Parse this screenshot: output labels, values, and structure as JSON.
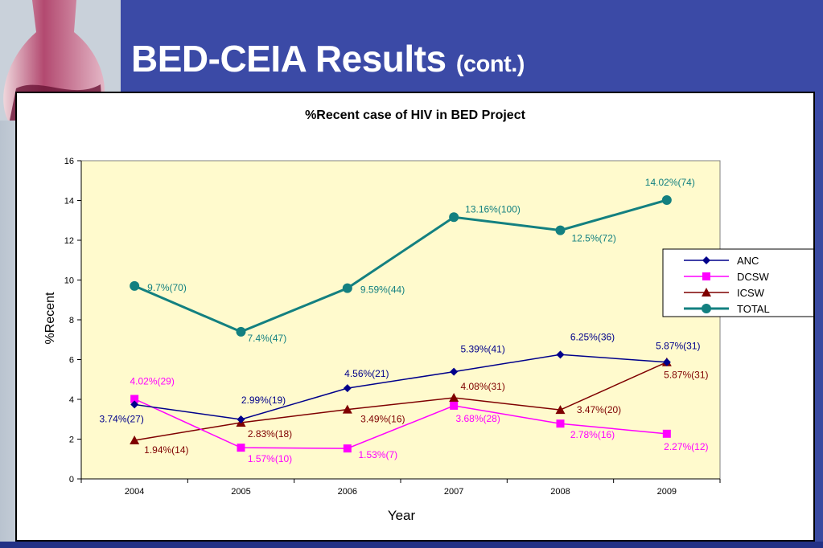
{
  "slide": {
    "title_main": "BED-CEIA Results",
    "title_sub": "(cont.)"
  },
  "colors": {
    "ANC": "#00008b",
    "DCSW": "#ff00ff",
    "ICSW": "#7f0000",
    "TOTAL": "#138080",
    "plot_bg": "#fffacd"
  },
  "chart_data": {
    "type": "line",
    "title": "%Recent case of HIV in BED Project",
    "xlabel": "Year",
    "ylabel": "%Recent",
    "categories": [
      "2004",
      "2005",
      "2006",
      "2007",
      "2008",
      "2009"
    ],
    "ylim": [
      0,
      16
    ],
    "yticks": [
      "0",
      "2",
      "4",
      "6",
      "8",
      "10",
      "12",
      "14",
      "16"
    ],
    "grid": false,
    "legend_position": "right",
    "series": [
      {
        "name": "ANC",
        "marker": "diamond",
        "values": [
          3.74,
          2.99,
          4.56,
          5.39,
          6.25,
          5.87
        ],
        "labels": [
          "3.74%(27)",
          "2.99%(19)",
          "4.56%(21)",
          "5.39%(41)",
          "6.25%(36)",
          "5.87%(31)"
        ]
      },
      {
        "name": "DCSW",
        "marker": "square",
        "values": [
          4.02,
          1.57,
          1.53,
          3.68,
          2.78,
          2.27
        ],
        "labels": [
          "4.02%(29)",
          "1.57%(10)",
          "1.53%(7)",
          "3.68%(28)",
          "2.78%(16)",
          "2.27%(12)"
        ]
      },
      {
        "name": "ICSW",
        "marker": "triangle",
        "values": [
          1.94,
          2.83,
          3.49,
          4.08,
          3.47,
          5.87
        ],
        "labels": [
          "1.94%(14)",
          "2.83%(18)",
          "3.49%(16)",
          "4.08%(31)",
          "3.47%(20)",
          "5.87%(31)"
        ]
      },
      {
        "name": "TOTAL",
        "marker": "circle",
        "values": [
          9.7,
          7.4,
          9.59,
          13.16,
          12.5,
          14.02
        ],
        "labels": [
          "9.7%(70)",
          "7.4%(47)",
          "9.59%(44)",
          "13.16%(100)",
          "12.5%(72)",
          "14.02%(74)"
        ]
      }
    ]
  }
}
